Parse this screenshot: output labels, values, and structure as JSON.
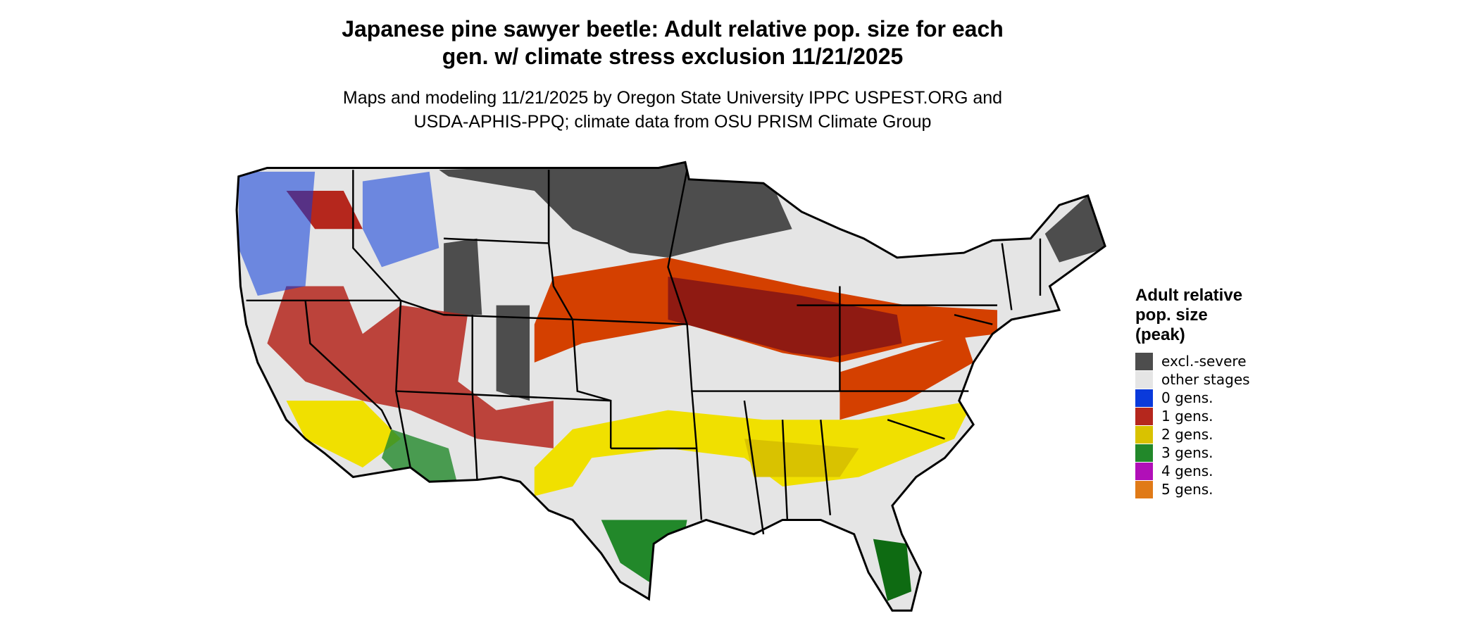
{
  "header": {
    "title": [
      "Japanese pine sawyer beetle: Adult relative pop. size for each",
      "gen. w/ climate stress exclusion 11/21/2025"
    ],
    "subtitle": [
      "Maps and modeling 11/21/2025 by Oregon State University IPPC USPEST.ORG and",
      "USDA-APHIS-PPQ; climate data from OSU PRISM Climate Group"
    ]
  },
  "legend": {
    "title": [
      "Adult relative",
      "pop. size",
      "(peak)"
    ],
    "items": [
      {
        "label": "excl.-severe",
        "color": "#4d4d4d"
      },
      {
        "label": "other stages",
        "color": "#e5e5e5"
      },
      {
        "label": "0 gens.",
        "color": "#0a3adb"
      },
      {
        "label": "1 gens.",
        "color": "#b5271d"
      },
      {
        "label": "2 gens.",
        "color": "#d9c200"
      },
      {
        "label": "3 gens.",
        "color": "#22882a"
      },
      {
        "label": "4 gens.",
        "color": "#b10fb8"
      },
      {
        "label": "5 gens.",
        "color": "#e07a17"
      }
    ]
  }
}
